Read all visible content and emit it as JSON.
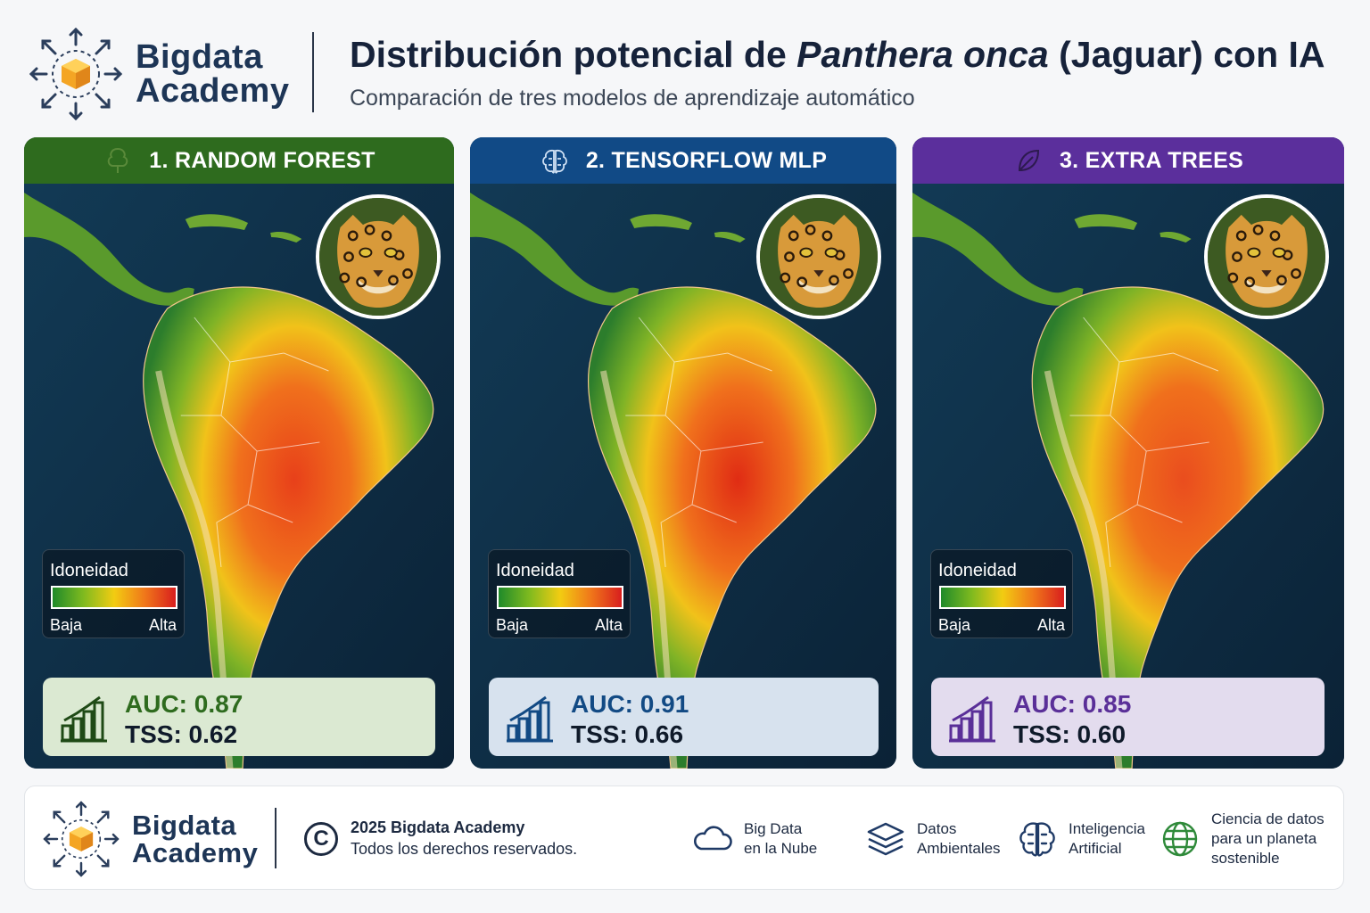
{
  "brand": {
    "line1": "Bigdata",
    "line2": "Academy"
  },
  "header": {
    "title_part1": "Distribución potencial de ",
    "title_species": "Panthera onca",
    "title_part2": " (Jaguar) con IA",
    "subtitle": "Comparación de tres modelos de aprendizaje automático"
  },
  "legend": {
    "title": "Idoneidad",
    "low": "Baja",
    "high": "Alta"
  },
  "panels": [
    {
      "title": "1. RANDOM FOREST",
      "icon": "tree-icon",
      "color": "#2e6b1e",
      "metric_bg": "#dbe9d2",
      "accent": "#2e6b1e",
      "auc": "AUC: 0.87",
      "tss": "TSS: 0.62"
    },
    {
      "title": "2. TENSORFLOW MLP",
      "icon": "brain-icon",
      "color": "#114a86",
      "metric_bg": "#d7e2ee",
      "accent": "#124a84",
      "auc": "AUC: 0.91",
      "tss": "TSS: 0.66"
    },
    {
      "title": "3. EXTRA TREES",
      "icon": "leaf-icon",
      "color": "#5b2f9c",
      "metric_bg": "#e3dcee",
      "accent": "#5a2f98",
      "auc": "AUC: 0.85",
      "tss": "TSS: 0.60"
    }
  ],
  "footer": {
    "copyright_line1": "2025 Bigdata Academy",
    "copyright_line2": "Todos los derechos reservados.",
    "features": [
      {
        "icon": "cloud-icon",
        "line1": "Big Data",
        "line2": "en la Nube"
      },
      {
        "icon": "layers-icon",
        "line1": "Datos",
        "line2": "Ambientales"
      },
      {
        "icon": "brain-icon",
        "line1": "Inteligencia",
        "line2": "Artificial"
      },
      {
        "icon": "globe-icon",
        "line1": "Ciencia de datos",
        "line2": "para un planeta",
        "line3": "sostenible"
      }
    ]
  }
}
